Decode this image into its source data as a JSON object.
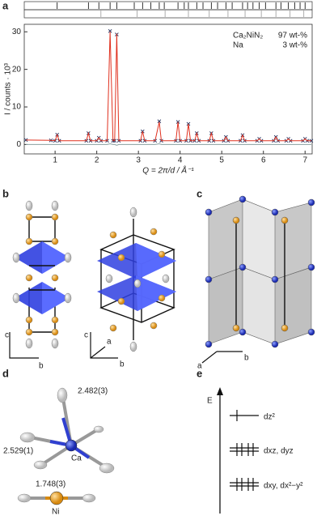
{
  "panel_labels": [
    "a",
    "b",
    "c",
    "d",
    "e"
  ],
  "chart_data": {
    "type": "line",
    "xlabel": "Q = 2π/d / Å⁻¹",
    "ylabel": "I / counts · 10³",
    "xlim": [
      0.26,
      7.17
    ],
    "xticks": [
      1,
      2,
      3,
      4,
      5,
      6,
      7
    ],
    "ylim": [
      -2.5,
      32
    ],
    "yticks": [
      0,
      10,
      20,
      30
    ],
    "x": [
      0.3,
      0.9,
      1.0,
      1.05,
      1.1,
      1.75,
      1.8,
      1.85,
      2.0,
      2.05,
      2.1,
      2.25,
      2.32,
      2.39,
      2.43,
      2.48,
      2.53,
      3.05,
      3.1,
      3.15,
      3.4,
      3.5,
      3.55,
      3.9,
      3.95,
      4.0,
      4.15,
      4.2,
      4.25,
      4.35,
      4.4,
      4.45,
      4.7,
      4.75,
      4.8,
      5.05,
      5.1,
      5.15,
      5.45,
      5.5,
      5.55,
      5.85,
      5.9,
      5.95,
      6.25,
      6.3,
      6.35,
      6.55,
      6.6,
      6.65,
      6.95,
      7.0,
      7.05,
      7.15
    ],
    "series": [
      {
        "color": "#1f2d5c",
        "marker": "x",
        "values": [
          1.2,
          1.1,
          1.0,
          2.6,
          1.0,
          1.0,
          3.0,
          1.0,
          1.0,
          1.8,
          1.0,
          1.0,
          30.2,
          1.0,
          1.0,
          29.3,
          1.0,
          1.0,
          3.5,
          1.0,
          1.0,
          6.2,
          1.0,
          1.0,
          6,
          1.0,
          1.0,
          5.5,
          1.0,
          1.0,
          3,
          1.0,
          1.0,
          3,
          1.0,
          1.0,
          2,
          1.0,
          1.0,
          2.5,
          1.0,
          1.0,
          1.5,
          1.0,
          1.0,
          2,
          1.0,
          1.0,
          1.5,
          1.0,
          1.0,
          1.5,
          1.0,
          1.0
        ]
      },
      {
        "color": "#e0301e",
        "values": [
          1.2,
          1.1,
          1.0,
          2.6,
          1.0,
          1.0,
          3.0,
          1.0,
          1.0,
          1.8,
          1.0,
          1.0,
          30,
          1.0,
          1.0,
          29.5,
          1.0,
          1.0,
          3.5,
          1.0,
          1.0,
          6,
          1.0,
          1.0,
          6,
          1.0,
          1.0,
          5.5,
          1.0,
          1.0,
          3,
          1.0,
          1.0,
          3,
          1.0,
          1.0,
          2,
          1.0,
          1.0,
          2.5,
          1.0,
          1.0,
          1.5,
          1.0,
          1.0,
          2,
          1.0,
          1.0,
          1.5,
          1.0,
          1.0,
          1.5,
          1.0,
          1.0
        ]
      },
      {
        "color": "#8aa0a0",
        "values": [
          0,
          0,
          0,
          0,
          0,
          0,
          0,
          0,
          0,
          0,
          0,
          0,
          0.2,
          0,
          0,
          -0.2,
          0,
          0,
          0,
          0,
          0,
          0.2,
          0,
          0,
          0,
          0,
          0,
          0,
          0,
          0,
          0,
          0,
          0,
          0,
          0,
          0,
          0,
          0,
          0,
          0,
          0,
          0,
          0,
          0,
          0,
          0,
          0,
          0,
          0,
          0,
          0,
          0,
          0,
          0
        ]
      }
    ],
    "bragg": [
      {
        "color": "#000000",
        "x": [
          1.05,
          1.8,
          2.05,
          2.32,
          2.48,
          2.9,
          3.1,
          3.3,
          3.5,
          3.62,
          3.95,
          4.1,
          4.2,
          4.4,
          4.55,
          4.75,
          4.9,
          5.1,
          5.25,
          5.5,
          5.62,
          5.75,
          5.9,
          6.05,
          6.3,
          6.42,
          6.6,
          6.75,
          6.88,
          7.0
        ]
      },
      {
        "color": "#999999",
        "x": [
          2.1,
          2.97,
          3.64,
          4.2,
          4.7,
          5.15,
          5.56,
          5.95,
          6.3,
          6.64,
          6.97
        ]
      }
    ],
    "legend": [
      {
        "label": "Ca₂NiN₂",
        "value": "97 wt-%",
        "color": "#111111"
      },
      {
        "label": "Na",
        "value": "3 wt-%",
        "color": "#999999"
      }
    ]
  },
  "axes_b1": [
    "c",
    "b"
  ],
  "axes_b2": [
    "c",
    "b",
    "a"
  ],
  "axes_c": [
    "a",
    "b"
  ],
  "panel_d": {
    "ca_label": "Ca",
    "ni_label": "Ni",
    "distances": [
      "2.482(3)",
      "2.529(1)",
      "1.748(3)"
    ]
  },
  "panel_e": {
    "axis_label": "E",
    "levels": [
      "dz²",
      "dxz, dyz",
      "dxy, dx²−y²"
    ]
  }
}
